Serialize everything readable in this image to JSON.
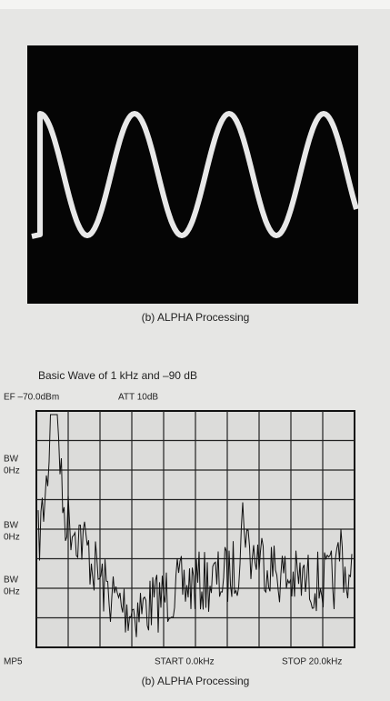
{
  "oscilloscope": {
    "caption": "(b) ALPHA Processing"
  },
  "spectrum": {
    "title": "Basic Wave of 1 kHz and –90 dB",
    "ref": "EF –70.0dBm",
    "att": "ATT 10dB",
    "side_labels": [
      [
        "BW",
        "0Hz"
      ],
      [
        "BW",
        "0Hz"
      ],
      [
        "BW",
        "0Hz"
      ]
    ],
    "footer": {
      "left": "MP5",
      "start": "START 0.0kHz",
      "stop": "STOP 20.0kHz"
    },
    "caption": "(b) ALPHA Processing"
  }
}
